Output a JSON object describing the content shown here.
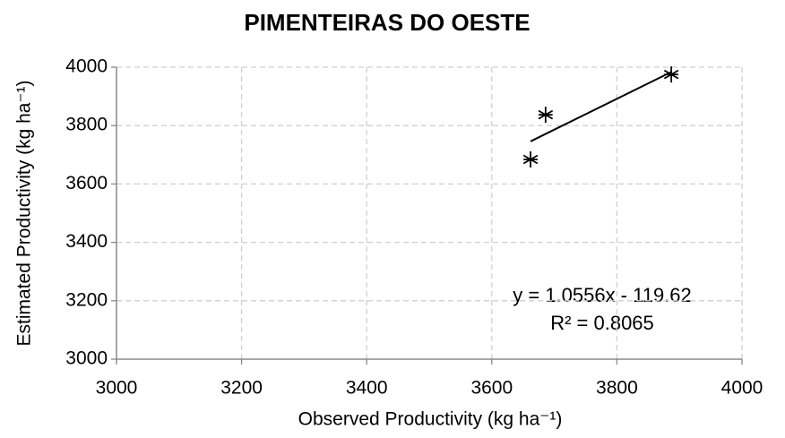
{
  "chart_data": {
    "type": "scatter",
    "title": "PIMENTEIRAS DO OESTE",
    "x_label": "Observed Productivity (kg ha⁻¹)",
    "y_label": "Estimated Productivity (kg ha⁻¹)",
    "x": [
      3662,
      3686,
      3887
    ],
    "values": [
      3684,
      3837,
      3975
    ],
    "color": "#000000",
    "xlim": [
      3000,
      4000
    ],
    "xticks": [
      3000,
      3200,
      3400,
      3600,
      3800,
      4000
    ],
    "ylim": [
      3000,
      4000
    ],
    "yticks": [
      3000,
      3200,
      3400,
      3600,
      3800,
      4000
    ],
    "grid": true,
    "trendline": {
      "slope": 1.0556,
      "intercept": -119.62,
      "equation": "y = 1.0556x - 119.62",
      "r2": "R² = 0.8065"
    }
  }
}
